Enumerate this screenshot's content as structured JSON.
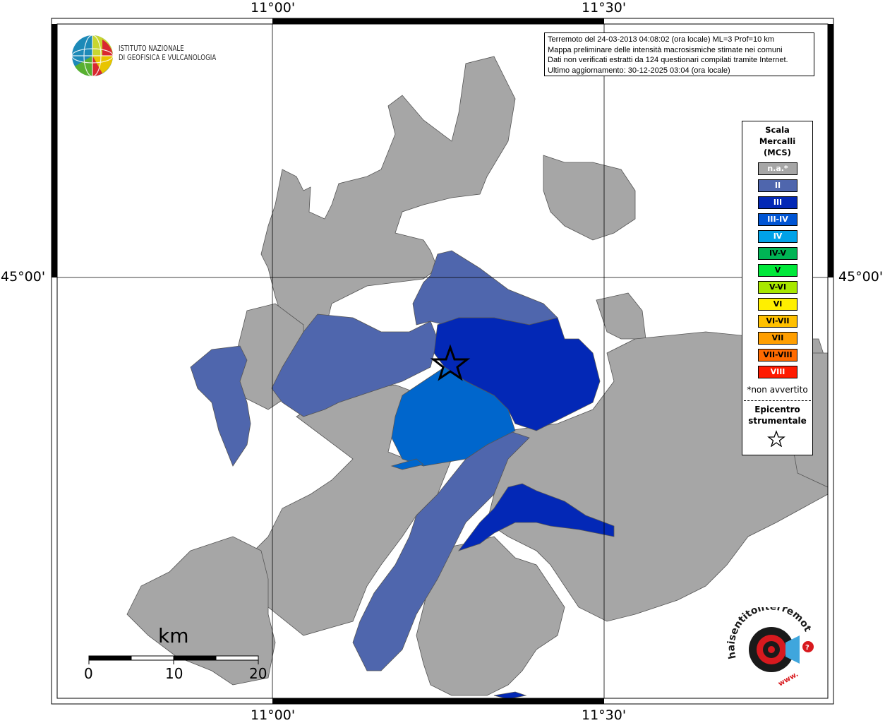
{
  "map": {
    "coordinates": {
      "top_left_lon": "11°00'",
      "top_right_lon": "11°30'",
      "bottom_left_lon": "11°00'",
      "bottom_right_lon": "11°30'",
      "left_lat": "45°00'",
      "right_lat": "45°00'"
    },
    "info_box": {
      "line1": "Terremoto del 24-03-2013 04:08:02 (ora locale) ML=3 Prof=10 km",
      "line2": "Mappa preliminare delle intensità macrosismiche stimate nei comuni",
      "line3": "Dati non verificati estratti da 124 questionari compilati tramite Internet.",
      "line4": "Ultimo aggiornamento: 30-12-2025 03:04 (ora locale)"
    },
    "logo": {
      "line1": "ISTITUTO NAZIONALE",
      "line2": "DI GEOFISICA E VULCANOLOGIA"
    },
    "legend": {
      "title_line1": "Scala",
      "title_line2": "Mercalli",
      "title_line3": "(MCS)",
      "items": [
        {
          "label": "n.a.*",
          "color": "#a6a6a6",
          "text_color": "#ffffff"
        },
        {
          "label": "II",
          "color": "#4f66ad",
          "text_color": "#ffffff"
        },
        {
          "label": "III",
          "color": "#0328b6",
          "text_color": "#ffffff"
        },
        {
          "label": "III-IV",
          "color": "#0055d4",
          "text_color": "#ffffff"
        },
        {
          "label": "IV",
          "color": "#00a2e8",
          "text_color": "#ffffff"
        },
        {
          "label": "IV-V",
          "color": "#00b455",
          "text_color": "#000000"
        },
        {
          "label": "V",
          "color": "#00e83a",
          "text_color": "#000000"
        },
        {
          "label": "V-VI",
          "color": "#a8e800",
          "text_color": "#000000"
        },
        {
          "label": "VI",
          "color": "#ffef00",
          "text_color": "#000000"
        },
        {
          "label": "VI-VII",
          "color": "#ffc000",
          "text_color": "#000000"
        },
        {
          "label": "VII",
          "color": "#ff9e00",
          "text_color": "#000000"
        },
        {
          "label": "VII-VIII",
          "color": "#ff6a00",
          "text_color": "#000000"
        },
        {
          "label": "VIII",
          "color": "#ff1a00",
          "text_color": "#ffffff"
        }
      ],
      "note": "*non avvertito",
      "epicenter_line1": "Epicentro",
      "epicenter_line2": "strumentale"
    },
    "scale_bar": {
      "unit": "km",
      "labels": [
        "0",
        "10",
        "20"
      ]
    },
    "haisentito": {
      "text": "haisentitoilterremoto.it",
      "prefix": "www."
    }
  }
}
